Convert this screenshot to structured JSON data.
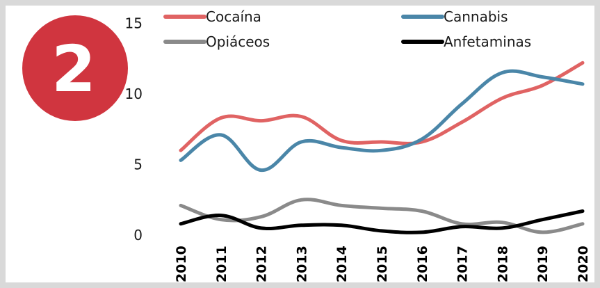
{
  "badge": {
    "label": "2",
    "color": "#d0353f"
  },
  "chart_data": {
    "type": "line",
    "title": "",
    "xlabel": "",
    "ylabel": "",
    "ylim": [
      0,
      15
    ],
    "yticks": [
      0,
      5,
      10,
      15
    ],
    "grid": false,
    "legend_position": "top",
    "categories": [
      "2010",
      "2011",
      "2012",
      "2013",
      "2014",
      "2015",
      "2016",
      "2017",
      "2018",
      "2019",
      "2020"
    ],
    "series": [
      {
        "name": "Cocaína",
        "color": "#e06363",
        "values": [
          6.0,
          8.3,
          8.1,
          8.4,
          6.7,
          6.6,
          6.6,
          8.0,
          9.7,
          10.6,
          12.2
        ]
      },
      {
        "name": "Cannabis",
        "color": "#4a86a8",
        "values": [
          5.3,
          7.1,
          4.6,
          6.6,
          6.2,
          6.0,
          6.8,
          9.3,
          11.5,
          11.2,
          10.7
        ]
      },
      {
        "name": "Opiáceos",
        "color": "#8a8a8a",
        "values": [
          2.1,
          1.1,
          1.3,
          2.5,
          2.1,
          1.9,
          1.7,
          0.8,
          0.9,
          0.2,
          0.8
        ]
      },
      {
        "name": "Anfetaminas",
        "color": "#000000",
        "values": [
          0.8,
          1.4,
          0.5,
          0.7,
          0.7,
          0.3,
          0.2,
          0.6,
          0.5,
          1.1,
          1.7
        ]
      }
    ]
  }
}
